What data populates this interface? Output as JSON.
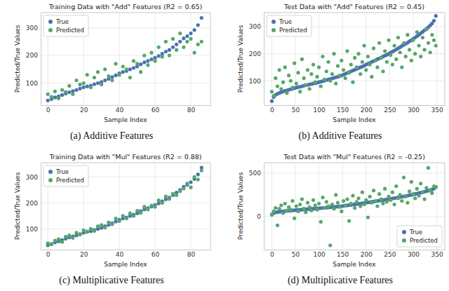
{
  "chart_data": [
    {
      "type": "scatter",
      "title": "Training Data with \"Add\" Features (R2 = 0.65)",
      "x_label": "Sample Index",
      "y_label": "Predicted/True Values",
      "caption": "(a) Additive Features",
      "x": [
        0,
        2,
        4,
        6,
        8,
        10,
        12,
        14,
        16,
        18,
        20,
        22,
        24,
        26,
        28,
        30,
        32,
        34,
        36,
        38,
        40,
        42,
        44,
        46,
        48,
        50,
        52,
        54,
        56,
        58,
        60,
        62,
        64,
        66,
        68,
        70,
        72,
        74,
        76,
        78,
        80,
        82,
        84,
        86
      ],
      "series": [
        {
          "name": "True",
          "color": "#4c72b0",
          "marker": "circle",
          "values": [
            37,
            42,
            48,
            52,
            57,
            62,
            67,
            71,
            75,
            80,
            85,
            88,
            91,
            96,
            100,
            104,
            110,
            115,
            122,
            128,
            135,
            140,
            144,
            150,
            155,
            160,
            168,
            175,
            180,
            186,
            192,
            198,
            206,
            214,
            220,
            230,
            240,
            250,
            262,
            270,
            280,
            292,
            310,
            336
          ]
        },
        {
          "name": "Predicted",
          "color": "#55a868",
          "marker": "circle",
          "values": [
            60,
            50,
            70,
            45,
            75,
            68,
            90,
            60,
            110,
            95,
            100,
            130,
            85,
            120,
            140,
            95,
            150,
            125,
            110,
            170,
            130,
            160,
            150,
            120,
            180,
            170,
            140,
            200,
            165,
            210,
            180,
            230,
            195,
            250,
            200,
            260,
            220,
            280,
            230,
            250,
            260,
            210,
            240,
            250
          ]
        }
      ],
      "xlim": [
        -4,
        91
      ],
      "ylim": [
        20,
        355
      ],
      "xticks": [
        0,
        20,
        40,
        60,
        80
      ],
      "yticks": [
        100,
        200,
        300
      ],
      "grid": true,
      "legend": "upper left"
    },
    {
      "type": "scatter",
      "title": "Test Data with \"Add\" Features (R2 = 0.45)",
      "x_label": "Sample Index",
      "y_label": "Predicted/True Values",
      "caption": "(b) Additive Features",
      "x": [
        0,
        4,
        8,
        12,
        16,
        20,
        24,
        28,
        32,
        36,
        40,
        44,
        48,
        52,
        56,
        60,
        64,
        68,
        72,
        76,
        80,
        84,
        88,
        92,
        96,
        100,
        104,
        108,
        112,
        116,
        120,
        124,
        128,
        132,
        136,
        140,
        144,
        148,
        152,
        156,
        160,
        164,
        168,
        172,
        176,
        180,
        184,
        188,
        192,
        196,
        200,
        204,
        208,
        212,
        216,
        220,
        224,
        228,
        232,
        236,
        240,
        244,
        248,
        252,
        256,
        260,
        264,
        268,
        272,
        276,
        280,
        284,
        288,
        292,
        296,
        300,
        304,
        308,
        312,
        316,
        320,
        324,
        328,
        332,
        336,
        340,
        344,
        348
      ],
      "series": [
        {
          "name": "True",
          "color": "#4c72b0",
          "marker": "circle",
          "values": [
            25,
            40,
            48,
            52,
            55,
            58,
            61,
            63,
            65,
            67,
            69,
            71,
            73,
            75,
            77,
            78,
            80,
            82,
            84,
            85,
            87,
            88,
            90,
            91,
            93,
            95,
            97,
            99,
            101,
            103,
            105,
            107,
            109,
            111,
            113,
            115,
            117,
            120,
            123,
            126,
            129,
            132,
            135,
            138,
            141,
            144,
            147,
            150,
            153,
            156,
            160,
            163,
            166,
            170,
            173,
            176,
            180,
            183,
            186,
            190,
            193,
            196,
            200,
            204,
            208,
            212,
            216,
            220,
            224,
            229,
            233,
            237,
            241,
            246,
            250,
            255,
            260,
            265,
            270,
            276,
            281,
            287,
            292,
            298,
            305,
            312,
            322,
            340
          ]
        },
        {
          "name": "Predicted",
          "color": "#55a868",
          "marker": "circle",
          "values": [
            60,
            45,
            110,
            80,
            140,
            70,
            95,
            150,
            55,
            120,
            100,
            75,
            165,
            90,
            130,
            60,
            180,
            110,
            85,
            140,
            70,
            125,
            160,
            95,
            115,
            150,
            80,
            190,
            105,
            135,
            170,
            100,
            125,
            200,
            90,
            155,
            120,
            175,
            140,
            110,
            210,
            130,
            160,
            95,
            185,
            150,
            200,
            125,
            170,
            230,
            140,
            190,
            160,
            115,
            220,
            175,
            150,
            240,
            185,
            135,
            210,
            170,
            250,
            195,
            160,
            230,
            180,
            260,
            205,
            150,
            240,
            190,
            270,
            215,
            175,
            250,
            200,
            280,
            230,
            190,
            260,
            215,
            290,
            240,
            205,
            270,
            250,
            230
          ]
        }
      ],
      "xlim": [
        -17,
        367
      ],
      "ylim": [
        10,
        352
      ],
      "xticks": [
        0,
        50,
        100,
        150,
        200,
        250,
        300,
        350
      ],
      "yticks": [
        100,
        200,
        300
      ],
      "grid": true,
      "legend": "upper left"
    },
    {
      "type": "scatter",
      "title": "Training Data with \"Mul\" Features (R2 = 0.88)",
      "x_label": "Sample Index",
      "y_label": "Predicted/True Values",
      "caption": "(c) Multiplicative Features",
      "x": [
        0,
        2,
        4,
        6,
        8,
        10,
        12,
        14,
        16,
        18,
        20,
        22,
        24,
        26,
        28,
        30,
        32,
        34,
        36,
        38,
        40,
        42,
        44,
        46,
        48,
        50,
        52,
        54,
        56,
        58,
        60,
        62,
        64,
        66,
        68,
        70,
        72,
        74,
        76,
        78,
        80,
        82,
        84,
        86
      ],
      "series": [
        {
          "name": "True",
          "color": "#4c72b0",
          "marker": "circle",
          "values": [
            37,
            42,
            48,
            52,
            57,
            62,
            67,
            71,
            75,
            80,
            85,
            88,
            91,
            96,
            100,
            104,
            110,
            115,
            122,
            128,
            135,
            140,
            144,
            150,
            155,
            160,
            168,
            175,
            180,
            186,
            192,
            198,
            206,
            214,
            220,
            230,
            240,
            250,
            262,
            270,
            280,
            292,
            310,
            336
          ]
        },
        {
          "name": "Predicted",
          "color": "#55a868",
          "marker": "circle",
          "values": [
            45,
            40,
            55,
            60,
            50,
            70,
            75,
            65,
            85,
            78,
            95,
            90,
            100,
            92,
            110,
            115,
            105,
            125,
            118,
            140,
            130,
            150,
            140,
            160,
            150,
            170,
            162,
            185,
            175,
            190,
            185,
            210,
            200,
            225,
            215,
            235,
            230,
            245,
            255,
            275,
            260,
            300,
            290,
            325
          ]
        }
      ],
      "xlim": [
        -4,
        91
      ],
      "ylim": [
        20,
        355
      ],
      "xticks": [
        0,
        20,
        40,
        60,
        80
      ],
      "yticks": [
        100,
        200,
        300
      ],
      "grid": true,
      "legend": "upper left"
    },
    {
      "type": "scatter",
      "title": "Test Data with \"Mul\" Features (R2 = -0.25)",
      "x_label": "Sample Index",
      "y_label": "Predicted/True Values",
      "caption": "(d) Multiplicative Features",
      "x": [
        0,
        4,
        8,
        12,
        16,
        20,
        24,
        28,
        32,
        36,
        40,
        44,
        48,
        52,
        56,
        60,
        64,
        68,
        72,
        76,
        80,
        84,
        88,
        92,
        96,
        100,
        104,
        108,
        112,
        116,
        120,
        124,
        128,
        132,
        136,
        140,
        144,
        148,
        152,
        156,
        160,
        164,
        168,
        172,
        176,
        180,
        184,
        188,
        192,
        196,
        200,
        204,
        208,
        212,
        216,
        220,
        224,
        228,
        232,
        236,
        240,
        244,
        248,
        252,
        256,
        260,
        264,
        268,
        272,
        276,
        280,
        284,
        288,
        292,
        296,
        300,
        304,
        308,
        312,
        316,
        320,
        324,
        328,
        332,
        336,
        340,
        344,
        348
      ],
      "series": [
        {
          "name": "True",
          "color": "#4c72b0",
          "marker": "circle",
          "values": [
            25,
            40,
            48,
            52,
            55,
            58,
            61,
            63,
            65,
            67,
            69,
            71,
            73,
            75,
            77,
            78,
            80,
            82,
            84,
            85,
            87,
            88,
            90,
            91,
            93,
            95,
            97,
            99,
            101,
            103,
            105,
            107,
            109,
            111,
            113,
            115,
            117,
            120,
            123,
            126,
            129,
            132,
            135,
            138,
            141,
            144,
            147,
            150,
            153,
            156,
            160,
            163,
            166,
            170,
            173,
            176,
            180,
            183,
            186,
            190,
            193,
            196,
            200,
            204,
            208,
            212,
            216,
            220,
            224,
            229,
            233,
            237,
            241,
            246,
            250,
            255,
            260,
            265,
            270,
            276,
            281,
            287,
            292,
            298,
            305,
            312,
            322,
            340
          ]
        },
        {
          "name": "Predicted",
          "color": "#55a868",
          "marker": "circle",
          "values": [
            20,
            60,
            100,
            -100,
            90,
            130,
            40,
            150,
            70,
            110,
            80,
            180,
            -20,
            120,
            60,
            140,
            200,
            90,
            50,
            160,
            110,
            70,
            190,
            130,
            80,
            150,
            -60,
            220,
            100,
            170,
            120,
            -330,
            140,
            90,
            250,
            160,
            110,
            60,
            180,
            130,
            200,
            -50,
            150,
            240,
            100,
            170,
            210,
            120,
            280,
            140,
            190,
            -10,
            230,
            160,
            300,
            180,
            120,
            260,
            200,
            150,
            320,
            170,
            230,
            190,
            280,
            140,
            350,
            210,
            250,
            180,
            450,
            230,
            160,
            290,
            400,
            260,
            210,
            320,
            240,
            380,
            280,
            200,
            330,
            560,
            300,
            270,
            350,
            340
          ]
        }
      ],
      "xlim": [
        -17,
        367
      ],
      "ylim": [
        -380,
        620
      ],
      "xticks": [
        0,
        50,
        100,
        150,
        200,
        250,
        300,
        350
      ],
      "yticks": [
        0,
        500
      ],
      "grid": true,
      "legend": "lower right"
    }
  ]
}
